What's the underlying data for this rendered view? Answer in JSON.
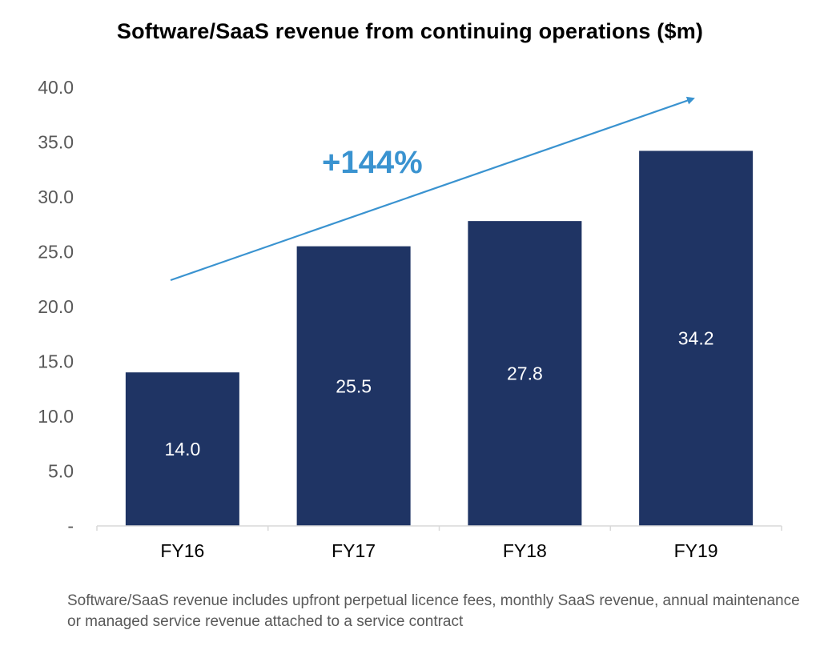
{
  "chart_data": {
    "type": "bar",
    "title": "Software/SaaS revenue from continuing operations ($m)",
    "categories": [
      "FY16",
      "FY17",
      "FY18",
      "FY19"
    ],
    "values": [
      14.0,
      25.5,
      27.8,
      34.2
    ],
    "value_labels": [
      "14.0",
      "25.5",
      "27.8",
      "34.2"
    ],
    "ylim": [
      0,
      40
    ],
    "yticks": [
      "-",
      "5.0",
      "10.0",
      "15.0",
      "20.0",
      "25.0",
      "30.0",
      "35.0",
      "40.0"
    ],
    "xlabel": "",
    "ylabel": "",
    "grid": false,
    "bar_color": "#1f3464",
    "annotation": {
      "text": "+144%",
      "color": "#3a93d0"
    }
  },
  "footnote": "Software/SaaS revenue includes upfront perpetual licence fees, monthly SaaS revenue, annual maintenance or managed service revenue attached to a service contract"
}
